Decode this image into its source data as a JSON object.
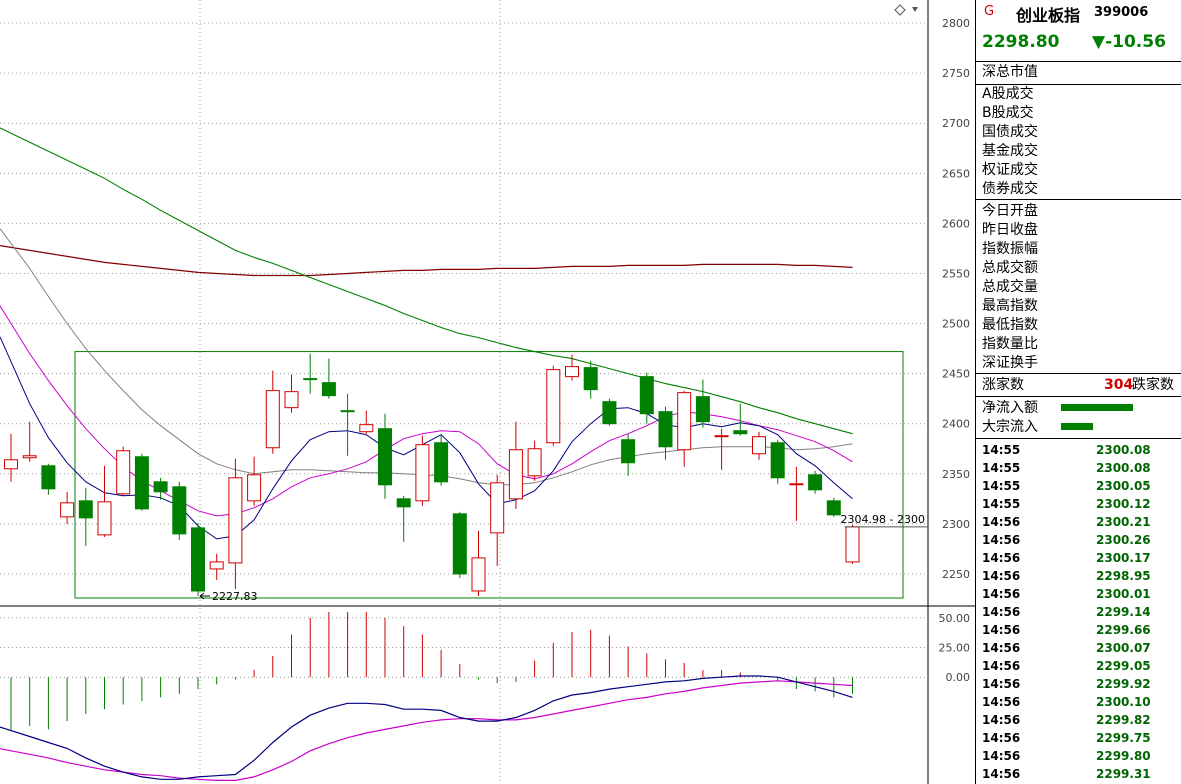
{
  "header": {
    "logo": "G",
    "name": "创业板指",
    "code": "399006",
    "price": "2298.80",
    "change": "▼-10.56"
  },
  "market_labels": [
    "深总市值"
  ],
  "volume_labels": [
    "A股成交",
    "B股成交",
    "国债成交",
    "基金成交",
    "权证成交",
    "债券成交"
  ],
  "stat_labels": [
    "今日开盘",
    "昨日收盘",
    "指数振幅",
    "总成交额",
    "总成交量",
    "最高指数",
    "最低指数",
    "指数量比",
    "深证换手"
  ],
  "advance": {
    "label_up": "涨家数",
    "count": "304",
    "label_down": "跌家数"
  },
  "flows": [
    {
      "label": "净流入额",
      "level": 0.72
    },
    {
      "label": "大宗流入",
      "level": 0.32
    }
  ],
  "ticks": [
    {
      "time": "14:55",
      "price": "2300.08"
    },
    {
      "time": "14:55",
      "price": "2300.08"
    },
    {
      "time": "14:55",
      "price": "2300.05"
    },
    {
      "time": "14:55",
      "price": "2300.12"
    },
    {
      "time": "14:56",
      "price": "2300.21"
    },
    {
      "time": "14:56",
      "price": "2300.26"
    },
    {
      "time": "14:56",
      "price": "2300.17"
    },
    {
      "time": "14:56",
      "price": "2298.95"
    },
    {
      "time": "14:56",
      "price": "2300.01"
    },
    {
      "time": "14:56",
      "price": "2299.14"
    },
    {
      "time": "14:56",
      "price": "2299.66"
    },
    {
      "time": "14:56",
      "price": "2300.07"
    },
    {
      "time": "14:56",
      "price": "2299.05"
    },
    {
      "time": "14:56",
      "price": "2299.92"
    },
    {
      "time": "14:56",
      "price": "2300.10"
    },
    {
      "time": "14:56",
      "price": "2299.82"
    },
    {
      "time": "14:56",
      "price": "2299.75"
    },
    {
      "time": "14:56",
      "price": "2299.80"
    },
    {
      "time": "14:56",
      "price": "2299.31"
    }
  ],
  "toolbar_icon": "diamond-icon",
  "colors": {
    "up": "#d00000",
    "down": "#008000",
    "ma_long": "#008000",
    "ma_longest": "#800000",
    "ma_mid": "#808080",
    "ma_short": "#cc00cc",
    "ma_fast": "#000080"
  },
  "chart_data": {
    "type": "candlestick",
    "price_axis": {
      "ticks": [
        2250,
        2300,
        2350,
        2400,
        2450,
        2500,
        2550,
        2600,
        2650,
        2700,
        2750,
        2800
      ],
      "range": [
        2218,
        2823
      ]
    },
    "current_price_label": "2304.98 - 2300",
    "low_annotation": "2227.83",
    "candles": [
      {
        "o": 2355,
        "c": 2364,
        "h": 2390,
        "l": 2342
      },
      {
        "o": 2366,
        "c": 2368,
        "h": 2402,
        "l": 2362
      },
      {
        "o": 2358,
        "c": 2335,
        "h": 2360,
        "l": 2329
      },
      {
        "o": 2307,
        "c": 2321,
        "h": 2332,
        "l": 2300
      },
      {
        "o": 2323,
        "c": 2306,
        "h": 2336,
        "l": 2278
      },
      {
        "o": 2289,
        "c": 2322,
        "h": 2358,
        "l": 2287
      },
      {
        "o": 2330,
        "c": 2373,
        "h": 2377,
        "l": 2328
      },
      {
        "o": 2367,
        "c": 2315,
        "h": 2370,
        "l": 2313
      },
      {
        "o": 2342,
        "c": 2332,
        "h": 2346,
        "l": 2324
      },
      {
        "o": 2337,
        "c": 2290,
        "h": 2342,
        "l": 2284
      },
      {
        "o": 2296,
        "c": 2233,
        "h": 2301,
        "l": 2228
      },
      {
        "o": 2255,
        "c": 2262,
        "h": 2270,
        "l": 2244
      },
      {
        "o": 2261,
        "c": 2346,
        "h": 2365,
        "l": 2235
      },
      {
        "o": 2323,
        "c": 2349,
        "h": 2367,
        "l": 2318
      },
      {
        "o": 2376,
        "c": 2433,
        "h": 2453,
        "l": 2370
      },
      {
        "o": 2416,
        "c": 2432,
        "h": 2449,
        "l": 2411
      },
      {
        "o": 2445,
        "c": 2444,
        "h": 2470,
        "l": 2430
      },
      {
        "o": 2441,
        "c": 2428,
        "h": 2465,
        "l": 2425
      },
      {
        "o": 2413,
        "c": 2412,
        "h": 2430,
        "l": 2368
      },
      {
        "o": 2392,
        "c": 2399,
        "h": 2413,
        "l": 2390
      },
      {
        "o": 2395,
        "c": 2339,
        "h": 2410,
        "l": 2325
      },
      {
        "o": 2325,
        "c": 2317,
        "h": 2328,
        "l": 2282
      },
      {
        "o": 2323,
        "c": 2379,
        "h": 2388,
        "l": 2318
      },
      {
        "o": 2381,
        "c": 2342,
        "h": 2388,
        "l": 2338
      },
      {
        "o": 2310,
        "c": 2250,
        "h": 2312,
        "l": 2246
      },
      {
        "o": 2233,
        "c": 2266,
        "h": 2293,
        "l": 2228
      },
      {
        "o": 2291,
        "c": 2341,
        "h": 2349,
        "l": 2258
      },
      {
        "o": 2325,
        "c": 2374,
        "h": 2402,
        "l": 2315
      },
      {
        "o": 2348,
        "c": 2375,
        "h": 2383,
        "l": 2343
      },
      {
        "o": 2381,
        "c": 2454,
        "h": 2458,
        "l": 2378
      },
      {
        "o": 2447,
        "c": 2457,
        "h": 2469,
        "l": 2443
      },
      {
        "o": 2456,
        "c": 2434,
        "h": 2463,
        "l": 2425
      },
      {
        "o": 2422,
        "c": 2400,
        "h": 2425,
        "l": 2398
      },
      {
        "o": 2384,
        "c": 2361,
        "h": 2390,
        "l": 2348
      },
      {
        "o": 2447,
        "c": 2410,
        "h": 2451,
        "l": 2400
      },
      {
        "o": 2412,
        "c": 2377,
        "h": 2417,
        "l": 2364
      },
      {
        "o": 2374,
        "c": 2431,
        "h": 2433,
        "l": 2357
      },
      {
        "o": 2427,
        "c": 2402,
        "h": 2444,
        "l": 2396
      },
      {
        "o": 2388,
        "c": 2388,
        "h": 2395,
        "l": 2354
      },
      {
        "o": 2393,
        "c": 2390,
        "h": 2420,
        "l": 2388
      },
      {
        "o": 2370,
        "c": 2387,
        "h": 2392,
        "l": 2364
      },
      {
        "o": 2381,
        "c": 2346,
        "h": 2384,
        "l": 2340
      },
      {
        "o": 2339,
        "c": 2340,
        "h": 2357,
        "l": 2303
      },
      {
        "o": 2349,
        "c": 2334,
        "h": 2353,
        "l": 2330
      },
      {
        "o": 2323,
        "c": 2309,
        "h": 2326,
        "l": 2307
      },
      {
        "o": 2262,
        "c": 2297,
        "h": 2299,
        "l": 2260
      }
    ],
    "ma_fast": [
      2462,
      2420,
      2386,
      2361,
      2342,
      2331,
      2328,
      2329,
      2326,
      2318,
      2298,
      2285,
      2288,
      2304,
      2335,
      2363,
      2384,
      2392,
      2393,
      2389,
      2376,
      2369,
      2379,
      2389,
      2371,
      2340,
      2320,
      2324,
      2333,
      2353,
      2382,
      2400,
      2415,
      2416,
      2410,
      2399,
      2396,
      2400,
      2397,
      2401,
      2398,
      2389,
      2370,
      2358,
      2341,
      2325
    ],
    "ma_short": [
      2500,
      2470,
      2443,
      2418,
      2395,
      2375,
      2357,
      2343,
      2333,
      2323,
      2313,
      2308,
      2310,
      2316,
      2325,
      2337,
      2346,
      2350,
      2355,
      2362,
      2374,
      2385,
      2390,
      2393,
      2392,
      2380,
      2360,
      2349,
      2345,
      2350,
      2360,
      2372,
      2383,
      2390,
      2398,
      2407,
      2412,
      2410,
      2407,
      2403,
      2398,
      2394,
      2388,
      2382,
      2373,
      2362
    ],
    "ma_mid": [
      2580,
      2555,
      2527,
      2500,
      2475,
      2453,
      2433,
      2414,
      2398,
      2384,
      2370,
      2360,
      2354,
      2350,
      2352,
      2354,
      2354,
      2353,
      2352,
      2351,
      2351,
      2350,
      2349,
      2348,
      2345,
      2341,
      2339,
      2339,
      2341,
      2346,
      2352,
      2359,
      2364,
      2367,
      2370,
      2372,
      2374,
      2376,
      2377,
      2377,
      2377,
      2376,
      2374,
      2375,
      2377,
      2380
    ],
    "ma_long": [
      2690,
      2681,
      2672,
      2663,
      2654,
      2645,
      2634,
      2624,
      2613,
      2603,
      2593,
      2583,
      2573,
      2566,
      2560,
      2553,
      2546,
      2539,
      2532,
      2525,
      2518,
      2510,
      2503,
      2496,
      2490,
      2486,
      2481,
      2476,
      2472,
      2468,
      2465,
      2460,
      2455,
      2450,
      2445,
      2440,
      2436,
      2432,
      2427,
      2422,
      2416,
      2411,
      2405,
      2400,
      2395,
      2390
    ],
    "ma_longest": [
      2576,
      2573,
      2570,
      2567,
      2564,
      2561,
      2559,
      2557,
      2555,
      2553,
      2551,
      2550,
      2549,
      2548,
      2548,
      2548,
      2548,
      2549,
      2550,
      2551,
      2552,
      2553,
      2553,
      2554,
      2554,
      2554,
      2555,
      2555,
      2555,
      2556,
      2557,
      2557,
      2557,
      2558,
      2558,
      2558,
      2558,
      2559,
      2559,
      2559,
      2559,
      2559,
      2558,
      2558,
      2557,
      2556
    ],
    "macd_axis": {
      "ticks": [
        50.0,
        25.0,
        0.0
      ],
      "range": [
        -90,
        60
      ]
    },
    "macd_hist": [
      -45,
      -41,
      -44,
      -37,
      -31,
      -27,
      -23,
      -20,
      -17,
      -14,
      -10,
      -6,
      -2,
      6,
      18,
      36,
      50,
      55,
      55,
      55,
      50,
      43,
      36,
      23,
      11,
      -2,
      -5,
      -4,
      14,
      29,
      38,
      40,
      35,
      26,
      20,
      15,
      12,
      6,
      6,
      4,
      0,
      -3,
      -10,
      -12,
      -17,
      -14
    ],
    "macd_dif": [
      -45,
      -50,
      -55,
      -60,
      -68,
      -75,
      -80,
      -84,
      -86,
      -86,
      -84,
      -83,
      -82,
      -70,
      -55,
      -42,
      -32,
      -26,
      -22,
      -22,
      -23,
      -27,
      -27,
      -28,
      -34,
      -37,
      -37,
      -34,
      -28,
      -20,
      -15,
      -13,
      -10,
      -8,
      -6,
      -4,
      -3,
      -1,
      0,
      1,
      1,
      0,
      -4,
      -8,
      -12,
      -17
    ],
    "macd_dea": [
      -62,
      -65,
      -68,
      -72,
      -75,
      -78,
      -80,
      -82,
      -83,
      -85,
      -86,
      -87,
      -87,
      -84,
      -78,
      -71,
      -62,
      -56,
      -51,
      -47,
      -44,
      -41,
      -38,
      -36,
      -35,
      -35,
      -36,
      -36,
      -34,
      -31,
      -28,
      -25,
      -22,
      -19,
      -17,
      -14,
      -12,
      -9,
      -7,
      -5,
      -4,
      -3,
      -4,
      -5,
      -6,
      -7
    ]
  }
}
